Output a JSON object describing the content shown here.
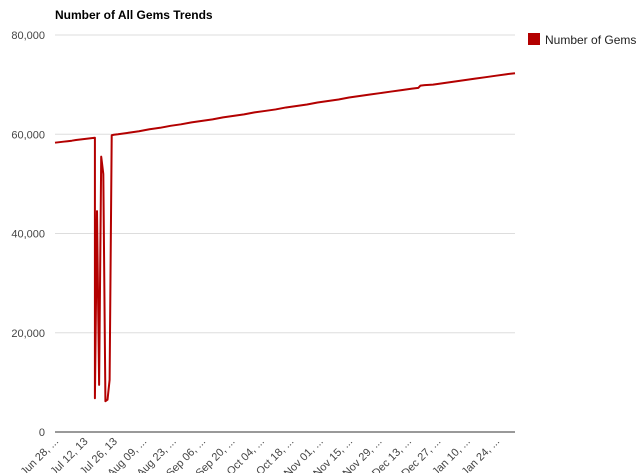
{
  "chart_data": {
    "type": "line",
    "title": "Number of All Gems Trends",
    "xlabel": "",
    "ylabel": "",
    "ylim": [
      0,
      80000
    ],
    "yticks": [
      0,
      20000,
      40000,
      60000,
      80000
    ],
    "ytick_labels": [
      "0",
      "20,000",
      "40,000",
      "60,000",
      "80,000"
    ],
    "xtick_labels": [
      "Jun 28, ...",
      "Jul 12, 13",
      "Jul 26, 13",
      "Aug 09, ...",
      "Aug 23, ...",
      "Sep 06, ...",
      "Sep 20, ...",
      "Oct 04, ...",
      "Oct 18, ...",
      "Nov 01, ...",
      "Nov 15, ...",
      "Nov 29, ...",
      "Dec 13, ...",
      "Dec 27, ...",
      "Jan 10, ...",
      "Jan 24, ..."
    ],
    "xtick_index": [
      0,
      14,
      28,
      42,
      56,
      70,
      84,
      98,
      112,
      126,
      140,
      154,
      168,
      182,
      196,
      210
    ],
    "x_count": 220,
    "grid": true,
    "legend": "right",
    "colors": {
      "series": "#b30000",
      "grid": "#dddddd",
      "axis": "#333333"
    },
    "series": [
      {
        "name": "Number of Gems",
        "points": [
          [
            0,
            58300
          ],
          [
            2,
            58400
          ],
          [
            4,
            58500
          ],
          [
            6,
            58600
          ],
          [
            8,
            58700
          ],
          [
            10,
            58850
          ],
          [
            12,
            58950
          ],
          [
            14,
            59050
          ],
          [
            16,
            59150
          ],
          [
            18,
            59250
          ],
          [
            19,
            59300
          ],
          [
            19,
            6800
          ],
          [
            20,
            44500
          ],
          [
            21,
            9500
          ],
          [
            22,
            55500
          ],
          [
            23,
            52000
          ],
          [
            24,
            6200
          ],
          [
            25,
            6500
          ],
          [
            26,
            10500
          ],
          [
            27,
            59800
          ],
          [
            28,
            59900
          ],
          [
            30,
            60000
          ],
          [
            35,
            60300
          ],
          [
            40,
            60600
          ],
          [
            45,
            61000
          ],
          [
            50,
            61300
          ],
          [
            55,
            61700
          ],
          [
            60,
            62000
          ],
          [
            65,
            62400
          ],
          [
            70,
            62700
          ],
          [
            75,
            63000
          ],
          [
            80,
            63400
          ],
          [
            85,
            63700
          ],
          [
            90,
            64000
          ],
          [
            95,
            64400
          ],
          [
            100,
            64700
          ],
          [
            105,
            65000
          ],
          [
            110,
            65400
          ],
          [
            115,
            65700
          ],
          [
            120,
            66000
          ],
          [
            125,
            66400
          ],
          [
            130,
            66700
          ],
          [
            135,
            67000
          ],
          [
            140,
            67400
          ],
          [
            145,
            67700
          ],
          [
            150,
            68000
          ],
          [
            155,
            68300
          ],
          [
            160,
            68600
          ],
          [
            165,
            68900
          ],
          [
            170,
            69200
          ],
          [
            173,
            69350
          ],
          [
            174,
            69800
          ],
          [
            176,
            69900
          ],
          [
            180,
            70000
          ],
          [
            185,
            70300
          ],
          [
            190,
            70600
          ],
          [
            195,
            70900
          ],
          [
            200,
            71200
          ],
          [
            205,
            71500
          ],
          [
            210,
            71800
          ],
          [
            215,
            72100
          ],
          [
            219,
            72300
          ]
        ]
      }
    ]
  }
}
